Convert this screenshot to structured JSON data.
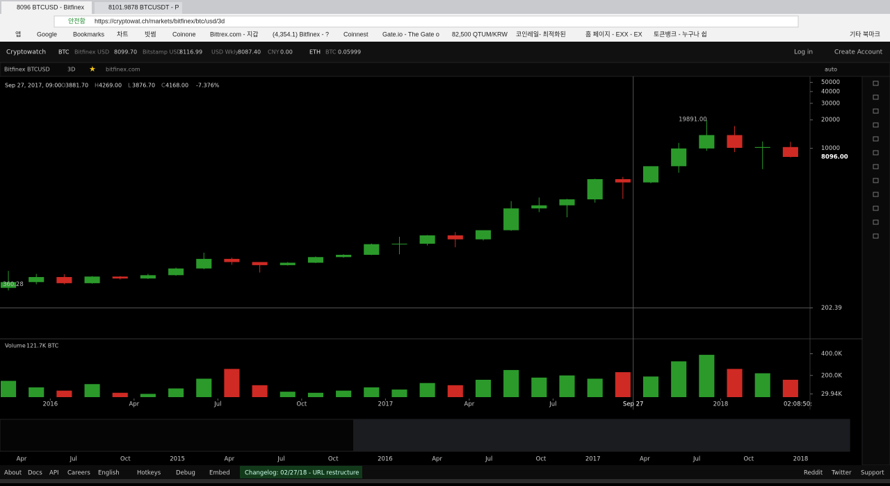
{
  "browser": {
    "tabs": [
      "8096 BTCUSD - Bitfinex",
      "8101.9878 BTCUSDT - P"
    ],
    "security": "안전함",
    "url": "https://cryptowat.ch/markets/bitfinex/btc/usd/3d",
    "bookmarks": [
      "앱",
      "Google",
      "Bookmarks",
      "차트",
      "빗썸",
      "Coinone",
      "Bittrex.com - 지갑",
      "(4,354.1) Bitfinex - ?",
      "Coinnest",
      "Gate.io - The Gate o",
      "82,500 QTUM/KRW",
      "코인레일- 최적화된",
      "홈 페이지 - EXX - EX",
      "토큰뱅크 - 누구나 쉽",
      "기타 북마크"
    ]
  },
  "header": {
    "brand": "Cryptowatch",
    "tickers": [
      "BTC",
      "Bitfinex USD",
      "8099.70",
      "Bitstamp USD",
      "8116.99",
      "USD Wkly",
      "8087.40",
      "CNY",
      "0.00",
      "ETH",
      "BTC",
      "0.05999"
    ],
    "login": "Log in",
    "create": "Create Account"
  },
  "toolbar": {
    "market": "Bitfinex BTCUSD",
    "period": "3D",
    "exchange": "bitfinex.com",
    "scale": "auto"
  },
  "ohlc": {
    "date": "Sep 27, 2017, 09:00",
    "fields": [
      {
        "key": "O",
        "value": "3881.70"
      },
      {
        "key": "H",
        "value": "4269.00"
      },
      {
        "key": "L",
        "value": "3876.70"
      },
      {
        "key": "C",
        "value": "4168.00"
      }
    ],
    "change": "-7.376%"
  },
  "chart_data": [
    {
      "type": "candlestick",
      "log_scale": true,
      "x": [
        -1.5,
        -0.5,
        0.5,
        1.5,
        2.5,
        3.5,
        4.5,
        5.5,
        6.5,
        7.5,
        8.5,
        9.5,
        10.5,
        11.5,
        12.5,
        13.5,
        14.5,
        15.5,
        16.5,
        17.5,
        18.5,
        19.5,
        20.5,
        21.5,
        22.5,
        23.5,
        24.5,
        25.5,
        26.5
      ],
      "open": [
        330,
        380,
        430,
        370,
        435,
        415,
        450,
        530,
        670,
        620,
        575,
        610,
        700,
        740,
        960,
        970,
        1190,
        1080,
        1350,
        2300,
        2480,
        2870,
        4700,
        4340,
        6450,
        9950,
        13800,
        10100,
        10300
      ],
      "high": [
        500,
        465,
        460,
        440,
        440,
        465,
        540,
        780,
        690,
        620,
        620,
        710,
        750,
        975,
        1150,
        1200,
        1290,
        1350,
        2750,
        3000,
        2900,
        4750,
        4970,
        6450,
        11400,
        19891,
        17200,
        11800,
        11700
      ],
      "low": [
        310,
        360,
        360,
        365,
        405,
        410,
        445,
        520,
        580,
        480,
        570,
        605,
        690,
        735,
        750,
        930,
        890,
        1050,
        1330,
        2100,
        1850,
        2650,
        2900,
        4250,
        5500,
        9400,
        9100,
        6000,
        8000
      ],
      "close": [
        380,
        430,
        370,
        435,
        415,
        450,
        530,
        670,
        620,
        575,
        610,
        700,
        740,
        960,
        970,
        1190,
        1080,
        1350,
        2300,
        2480,
        2870,
        4700,
        4340,
        6450,
        9950,
        13800,
        10100,
        10300,
        8096
      ],
      "colors": {
        "up": "#2b9a2b",
        "down": "#cf2a24"
      },
      "xlim": [
        -1.8,
        27.2
      ],
      "xticks": [
        {
          "value": 0,
          "label": "2016"
        },
        {
          "value": 3,
          "label": "Apr"
        },
        {
          "value": 6,
          "label": "Jul"
        },
        {
          "value": 9,
          "label": "Oct"
        },
        {
          "value": 12,
          "label": "2017"
        },
        {
          "value": 15,
          "label": "Apr"
        },
        {
          "value": 18,
          "label": "Jul"
        },
        {
          "value": 24,
          "label": "2018"
        }
      ],
      "ylim": [
        100,
        56000
      ],
      "yticks": [
        50000,
        40000,
        30000,
        20000,
        10000,
        202.39
      ],
      "annotations": [
        {
          "value": 19891,
          "label": "19891.00"
        },
        {
          "value": 8096,
          "label": "8096.00"
        },
        {
          "value": 360.28,
          "label": "360.28"
        }
      ],
      "crosshair": {
        "value": 20.87,
        "label": "Sep 27"
      },
      "time_label": "02:08:50:"
    },
    {
      "type": "bar",
      "title": "Volume",
      "total": "121.7K BTC",
      "values": [
        150000,
        90000,
        60000,
        120000,
        40000,
        30000,
        80000,
        170000,
        260000,
        110000,
        50000,
        40000,
        60000,
        90000,
        70000,
        130000,
        110000,
        160000,
        250000,
        180000,
        200000,
        170000,
        230000,
        190000,
        330000,
        390000,
        260000,
        220000,
        160000
      ],
      "ylim": [
        0,
        480000
      ],
      "yticks": [
        {
          "value": 400000,
          "label": "400.0K"
        },
        {
          "value": 200000,
          "label": "200.0K"
        },
        {
          "value": 29940,
          "label": "29.94K"
        }
      ]
    }
  ],
  "navigator": {
    "labels": [
      "Apr",
      "Jul",
      "Oct",
      "2015",
      "Apr",
      "Jul",
      "Oct",
      "2016",
      "Apr",
      "Jul",
      "Oct",
      "2017",
      "Apr",
      "Jul",
      "Oct",
      "2018"
    ]
  },
  "footer": {
    "links": [
      "About",
      "Docs",
      "API",
      "Careers",
      "English",
      "Hotkeys",
      "Debug",
      "Embed"
    ],
    "changelog": "Changelog: 02/27/18 - URL restructure",
    "right": [
      "Reddit",
      "Twitter",
      "Support"
    ]
  }
}
